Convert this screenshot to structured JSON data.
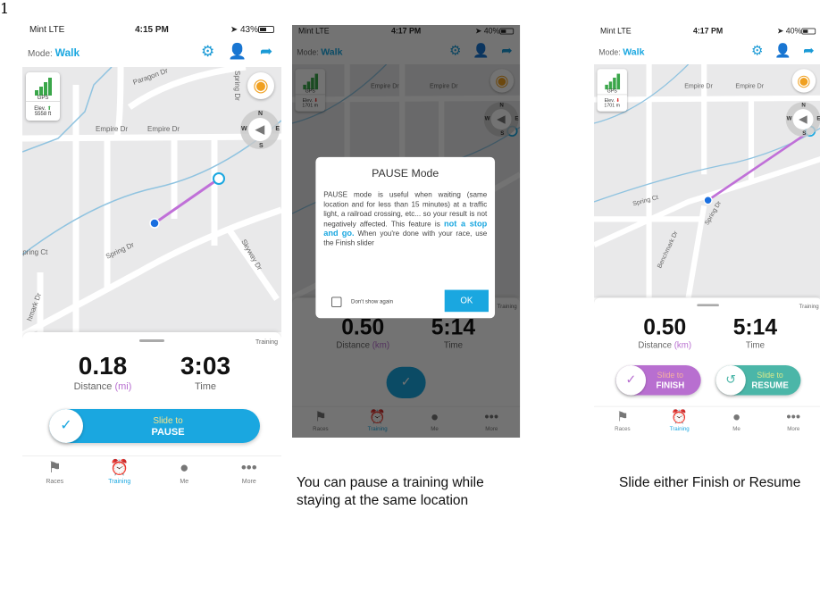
{
  "figure_marker": "1",
  "colors": {
    "accent": "#1aa7e0",
    "finish": "#b86fd0",
    "resume": "#4bb6a8",
    "route": "#c070d8",
    "gps": "#3aa64a"
  },
  "screens": [
    {
      "status": {
        "carrier": "Mint  LTE",
        "time": "4:15 PM",
        "battery": "43%",
        "battery_level": 43
      },
      "header": {
        "mode_label": "Mode:",
        "mode_value": "Walk"
      },
      "map": {
        "gps_label": "GPS",
        "elev_label": "Elev.",
        "elev_value": "5558 ft",
        "elev_trend": "up",
        "streets": [
          "Paragon Dr",
          "Empire Dr",
          "Empire Dr",
          "Spring Dr",
          "Spring Ct",
          "Spring Dr",
          "Skyway Dr",
          "hmark Dr"
        ],
        "compass": [
          "N",
          "S",
          "W",
          "E"
        ]
      },
      "sheet": {
        "label": "Training",
        "distance": "0.18",
        "distance_label": "Distance",
        "distance_unit": "(mi)",
        "time": "3:03",
        "time_label": "Time",
        "sliders": [
          {
            "line1": "Slide to",
            "line2": "PAUSE",
            "icon": "check-icon"
          }
        ]
      },
      "tabs": [
        {
          "label": "Races",
          "icon": "flag-icon"
        },
        {
          "label": "Training",
          "icon": "alarm-clock-icon",
          "active": true
        },
        {
          "label": "Me",
          "icon": "user-icon"
        },
        {
          "label": "More",
          "icon": "more-icon"
        }
      ]
    },
    {
      "status": {
        "carrier": "Mint  LTE",
        "time": "4:17 PM",
        "battery": "40%",
        "battery_level": 40
      },
      "header": {
        "mode_label": "Mode:",
        "mode_value": "Walk"
      },
      "map": {
        "gps_label": "GPS",
        "elev_label": "Elev.",
        "elev_value": "1701 m",
        "elev_trend": "down",
        "streets": [
          "Empire Dr",
          "Empire Dr"
        ],
        "compass": [
          "N",
          "S",
          "W",
          "E"
        ]
      },
      "sheet": {
        "label": "Training",
        "distance": "0.50",
        "distance_label": "Distance",
        "distance_unit": "(km)",
        "time": "5:14",
        "time_label": "Time"
      },
      "dialog": {
        "title": "PAUSE Mode",
        "body": "PAUSE mode is useful when waiting (same location and for less than 15 minutes) at a traffic light, a railroad crossing, etc... so your result is not negatively affected. This feature is ",
        "highlight": "not a stop and go.",
        "body_end": " When you're done with your race, use the Finish slider",
        "checkbox": "Don't show again",
        "ok": "OK"
      },
      "tabs": [
        {
          "label": "Races",
          "icon": "flag-icon"
        },
        {
          "label": "Training",
          "icon": "alarm-clock-icon",
          "active": true
        },
        {
          "label": "Me",
          "icon": "user-icon"
        },
        {
          "label": "More",
          "icon": "more-icon"
        }
      ]
    },
    {
      "status": {
        "carrier": "Mint  LTE",
        "time": "4:17 PM",
        "battery": "40%",
        "battery_level": 40
      },
      "header": {
        "mode_label": "Mode:",
        "mode_value": "Walk"
      },
      "map": {
        "gps_label": "GPS",
        "elev_label": "Elev.",
        "elev_value": "1701 m",
        "elev_trend": "down",
        "streets": [
          "Empire Dr",
          "Empire Dr",
          "Spring Ct",
          "Spring Dr",
          "Benchmark Dr"
        ],
        "compass": [
          "N",
          "S",
          "W",
          "E"
        ]
      },
      "sheet": {
        "label": "Training",
        "distance": "0.50",
        "distance_label": "Distance",
        "distance_unit": "(km)",
        "time": "5:14",
        "time_label": "Time",
        "sliders": [
          {
            "line1": "Slide to",
            "line2": "FINISH",
            "icon": "check-icon"
          },
          {
            "line1": "Slide to",
            "line2": "RESUME",
            "icon": "history-icon"
          }
        ]
      },
      "tabs": [
        {
          "label": "Races",
          "icon": "flag-icon"
        },
        {
          "label": "Training",
          "icon": "alarm-clock-icon",
          "active": true
        },
        {
          "label": "Me",
          "icon": "user-icon"
        },
        {
          "label": "More",
          "icon": "more-icon"
        }
      ]
    }
  ],
  "captions": [
    "You can pause a training while staying at the same location",
    "Slide either Finish or Resume"
  ]
}
